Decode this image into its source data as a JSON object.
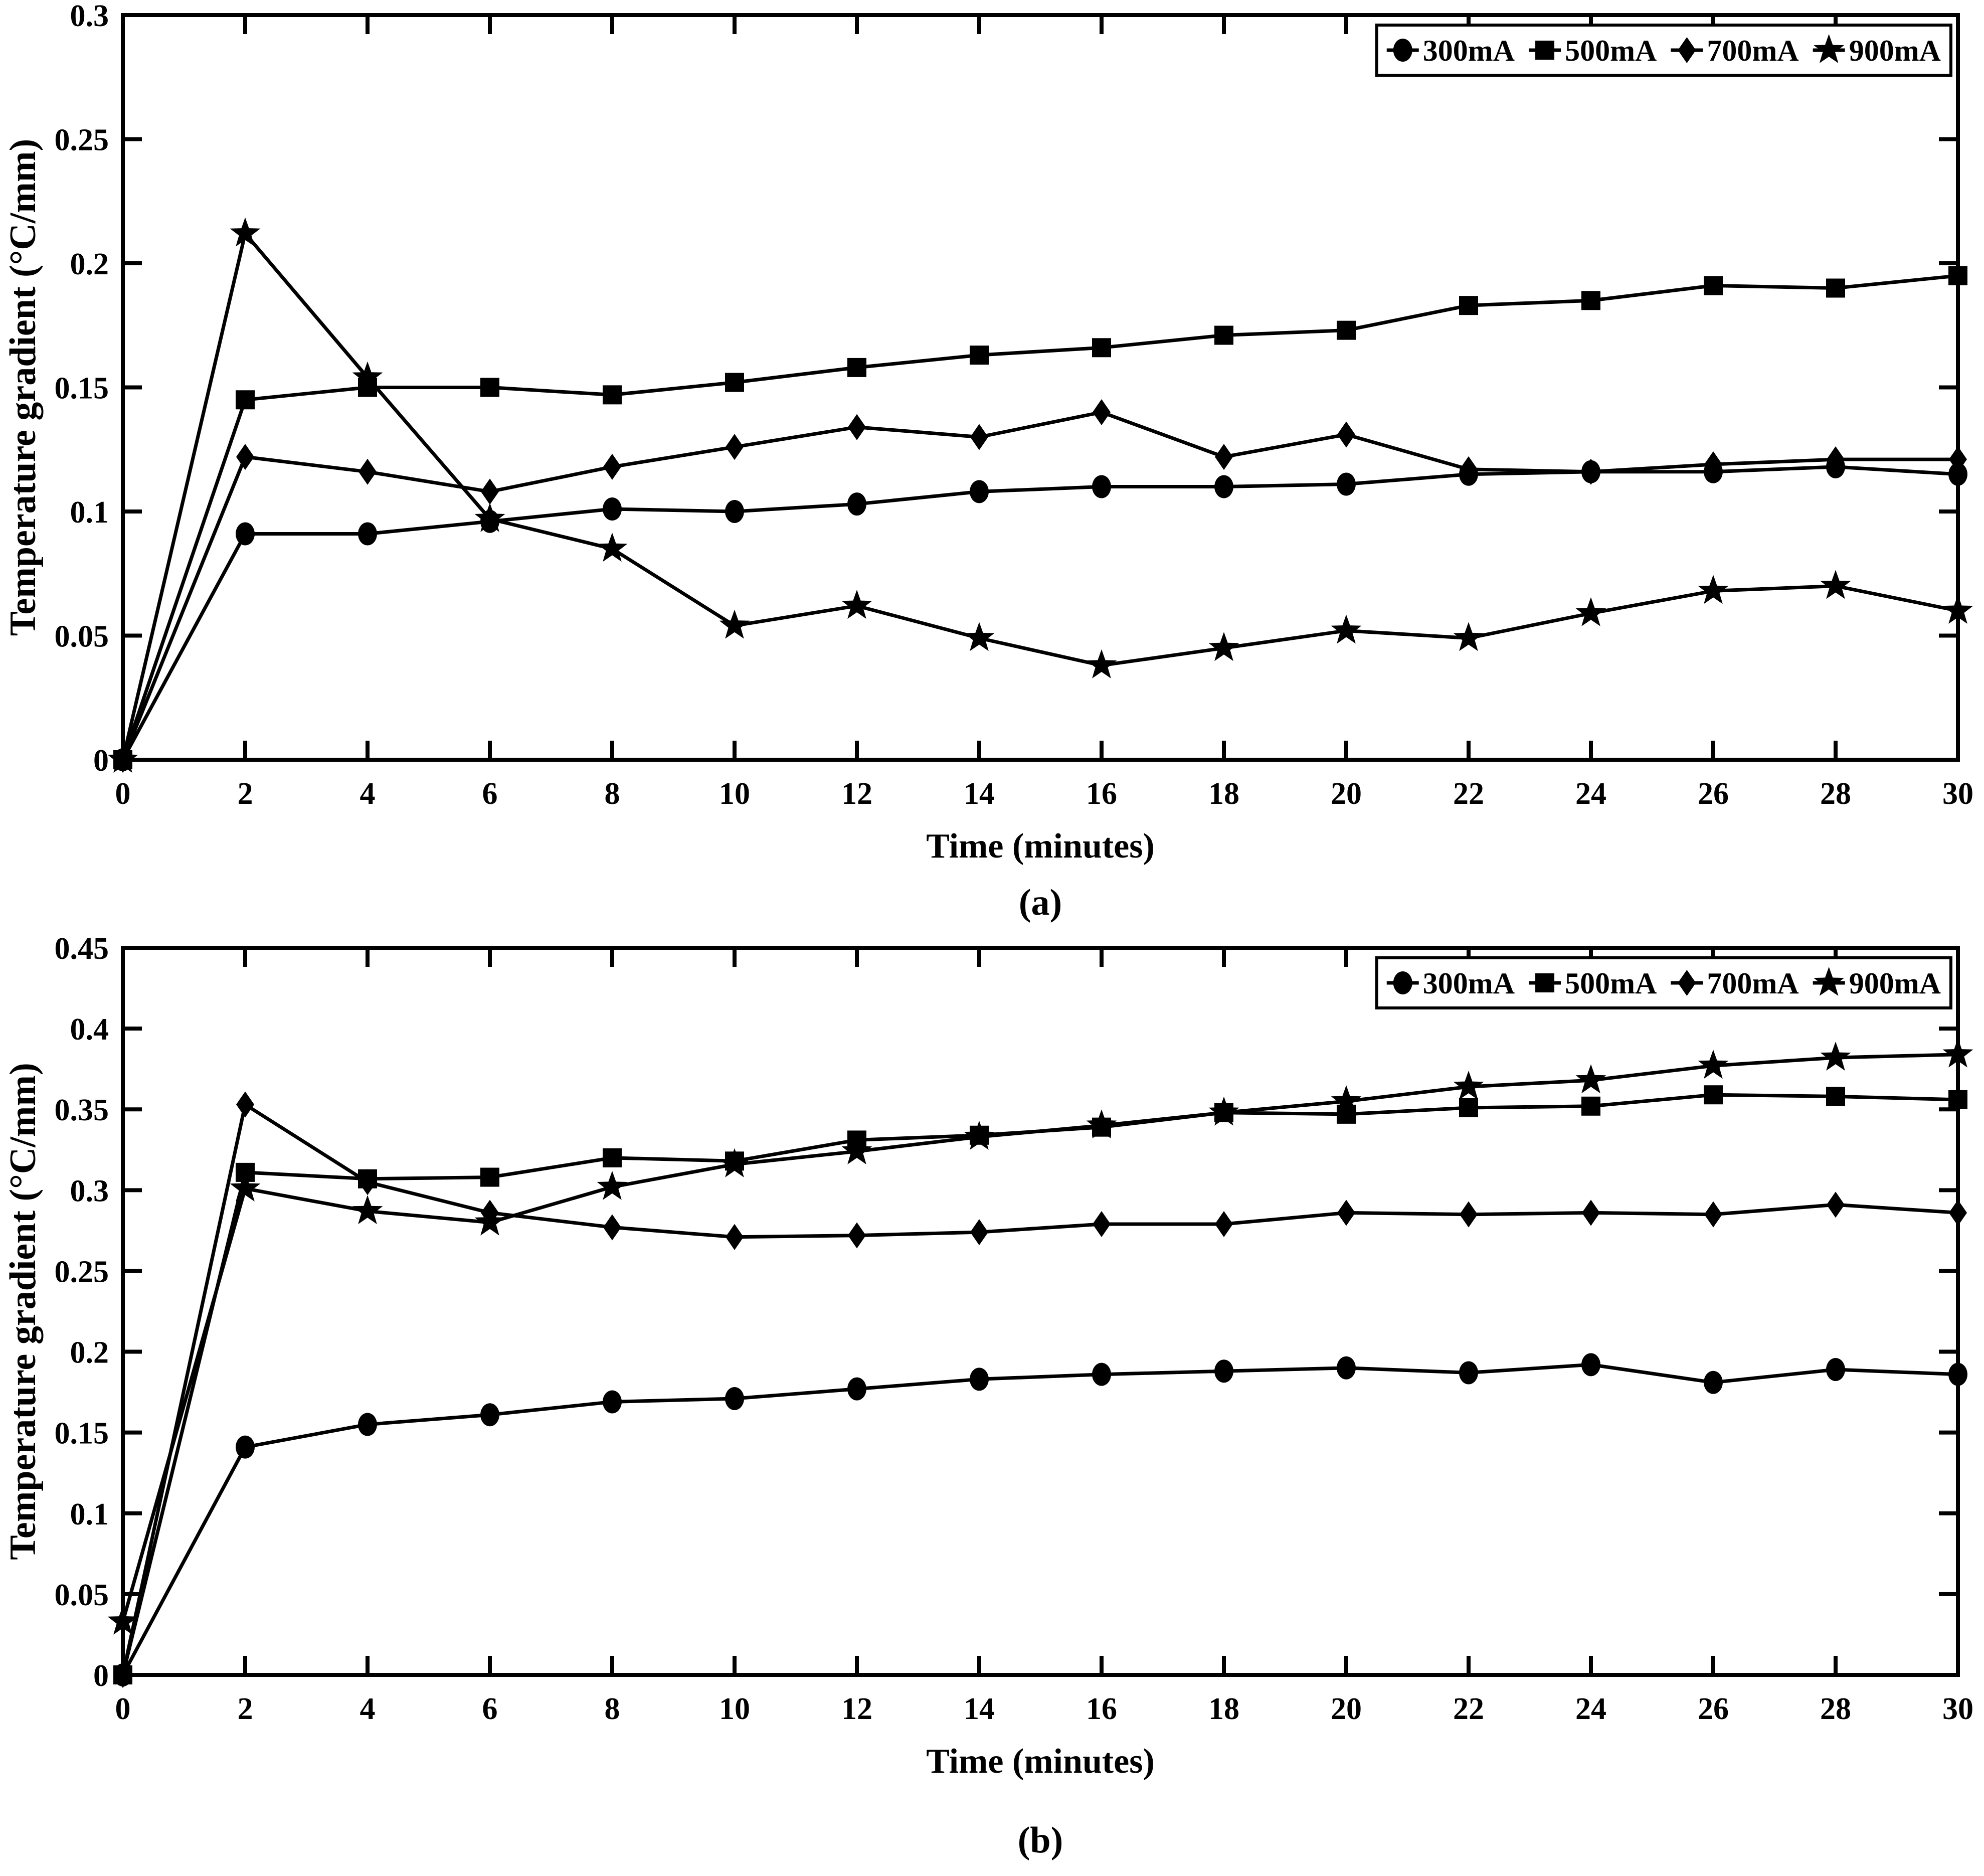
{
  "page": {
    "background": "#ffffff",
    "ink_color": "#000000"
  },
  "chart_data": [
    {
      "type": "line",
      "panel_label": "(a)",
      "xlabel": "Time (minutes)",
      "ylabel": "Temperature gradient (°C/mm)",
      "xlim": [
        0,
        30
      ],
      "ylim": [
        0,
        0.3
      ],
      "x_ticks": [
        "0",
        "2",
        "4",
        "6",
        "8",
        "10",
        "12",
        "14",
        "16",
        "18",
        "20",
        "22",
        "24",
        "26",
        "28",
        "30"
      ],
      "y_ticks": [
        "0",
        "0.05",
        "0.1",
        "0.15",
        "0.2",
        "0.25",
        "0.3"
      ],
      "grid": false,
      "legend_position": "top-right",
      "x": [
        0,
        2,
        4,
        6,
        8,
        10,
        12,
        14,
        16,
        18,
        20,
        22,
        24,
        26,
        28,
        30
      ],
      "series": [
        {
          "name": "300mA",
          "marker": "circle",
          "color": "#000000",
          "values": [
            0,
            0.091,
            0.091,
            0.096,
            0.101,
            0.1,
            0.103,
            0.108,
            0.11,
            0.11,
            0.111,
            0.115,
            0.116,
            0.116,
            0.118,
            0.115
          ]
        },
        {
          "name": "500mA",
          "marker": "square",
          "color": "#000000",
          "values": [
            0,
            0.145,
            0.15,
            0.15,
            0.147,
            0.152,
            0.158,
            0.163,
            0.166,
            0.171,
            0.173,
            0.183,
            0.185,
            0.191,
            0.19,
            0.195
          ]
        },
        {
          "name": "700mA",
          "marker": "diamond",
          "color": "#000000",
          "values": [
            0,
            0.122,
            0.116,
            0.108,
            0.118,
            0.126,
            0.134,
            0.13,
            0.14,
            0.122,
            0.131,
            0.117,
            0.116,
            0.119,
            0.121,
            0.121
          ]
        },
        {
          "name": "900mA",
          "marker": "star",
          "color": "#000000",
          "values": [
            0,
            0.212,
            0.154,
            0.097,
            0.085,
            0.054,
            0.062,
            0.049,
            0.038,
            0.045,
            0.052,
            0.049,
            0.059,
            0.068,
            0.07,
            0.06
          ]
        }
      ]
    },
    {
      "type": "line",
      "panel_label": "(b)",
      "xlabel": "Time (minutes)",
      "ylabel": "Temperature gradient (°C/mm)",
      "xlim": [
        0,
        30
      ],
      "ylim": [
        0,
        0.45
      ],
      "x_ticks": [
        "0",
        "2",
        "4",
        "6",
        "8",
        "10",
        "12",
        "14",
        "16",
        "18",
        "20",
        "22",
        "24",
        "26",
        "28",
        "30"
      ],
      "y_ticks": [
        "0",
        "0.05",
        "0.1",
        "0.15",
        "0.2",
        "0.25",
        "0.3",
        "0.35",
        "0.4",
        "0.45"
      ],
      "grid": false,
      "legend_position": "top-right",
      "x": [
        0,
        2,
        4,
        6,
        8,
        10,
        12,
        14,
        16,
        18,
        20,
        22,
        24,
        26,
        28,
        30
      ],
      "series": [
        {
          "name": "300mA",
          "marker": "circle",
          "color": "#000000",
          "values": [
            0,
            0.141,
            0.155,
            0.161,
            0.169,
            0.171,
            0.177,
            0.183,
            0.186,
            0.188,
            0.19,
            0.187,
            0.192,
            0.181,
            0.189,
            0.186
          ]
        },
        {
          "name": "500mA",
          "marker": "square",
          "color": "#000000",
          "values": [
            0,
            0.311,
            0.307,
            0.308,
            0.32,
            0.318,
            0.331,
            0.334,
            0.339,
            0.348,
            0.347,
            0.351,
            0.352,
            0.359,
            0.358,
            0.356
          ]
        },
        {
          "name": "700mA",
          "marker": "diamond",
          "color": "#000000",
          "values": [
            0,
            0.353,
            0.305,
            0.286,
            0.277,
            0.271,
            0.272,
            0.274,
            0.279,
            0.279,
            0.286,
            0.285,
            0.286,
            0.285,
            0.291,
            0.286
          ]
        },
        {
          "name": "900mA",
          "marker": "star",
          "color": "#000000",
          "values": [
            0.033,
            0.301,
            0.287,
            0.28,
            0.302,
            0.316,
            0.324,
            0.333,
            0.34,
            0.348,
            0.355,
            0.364,
            0.368,
            0.377,
            0.382,
            0.384
          ]
        }
      ]
    }
  ]
}
